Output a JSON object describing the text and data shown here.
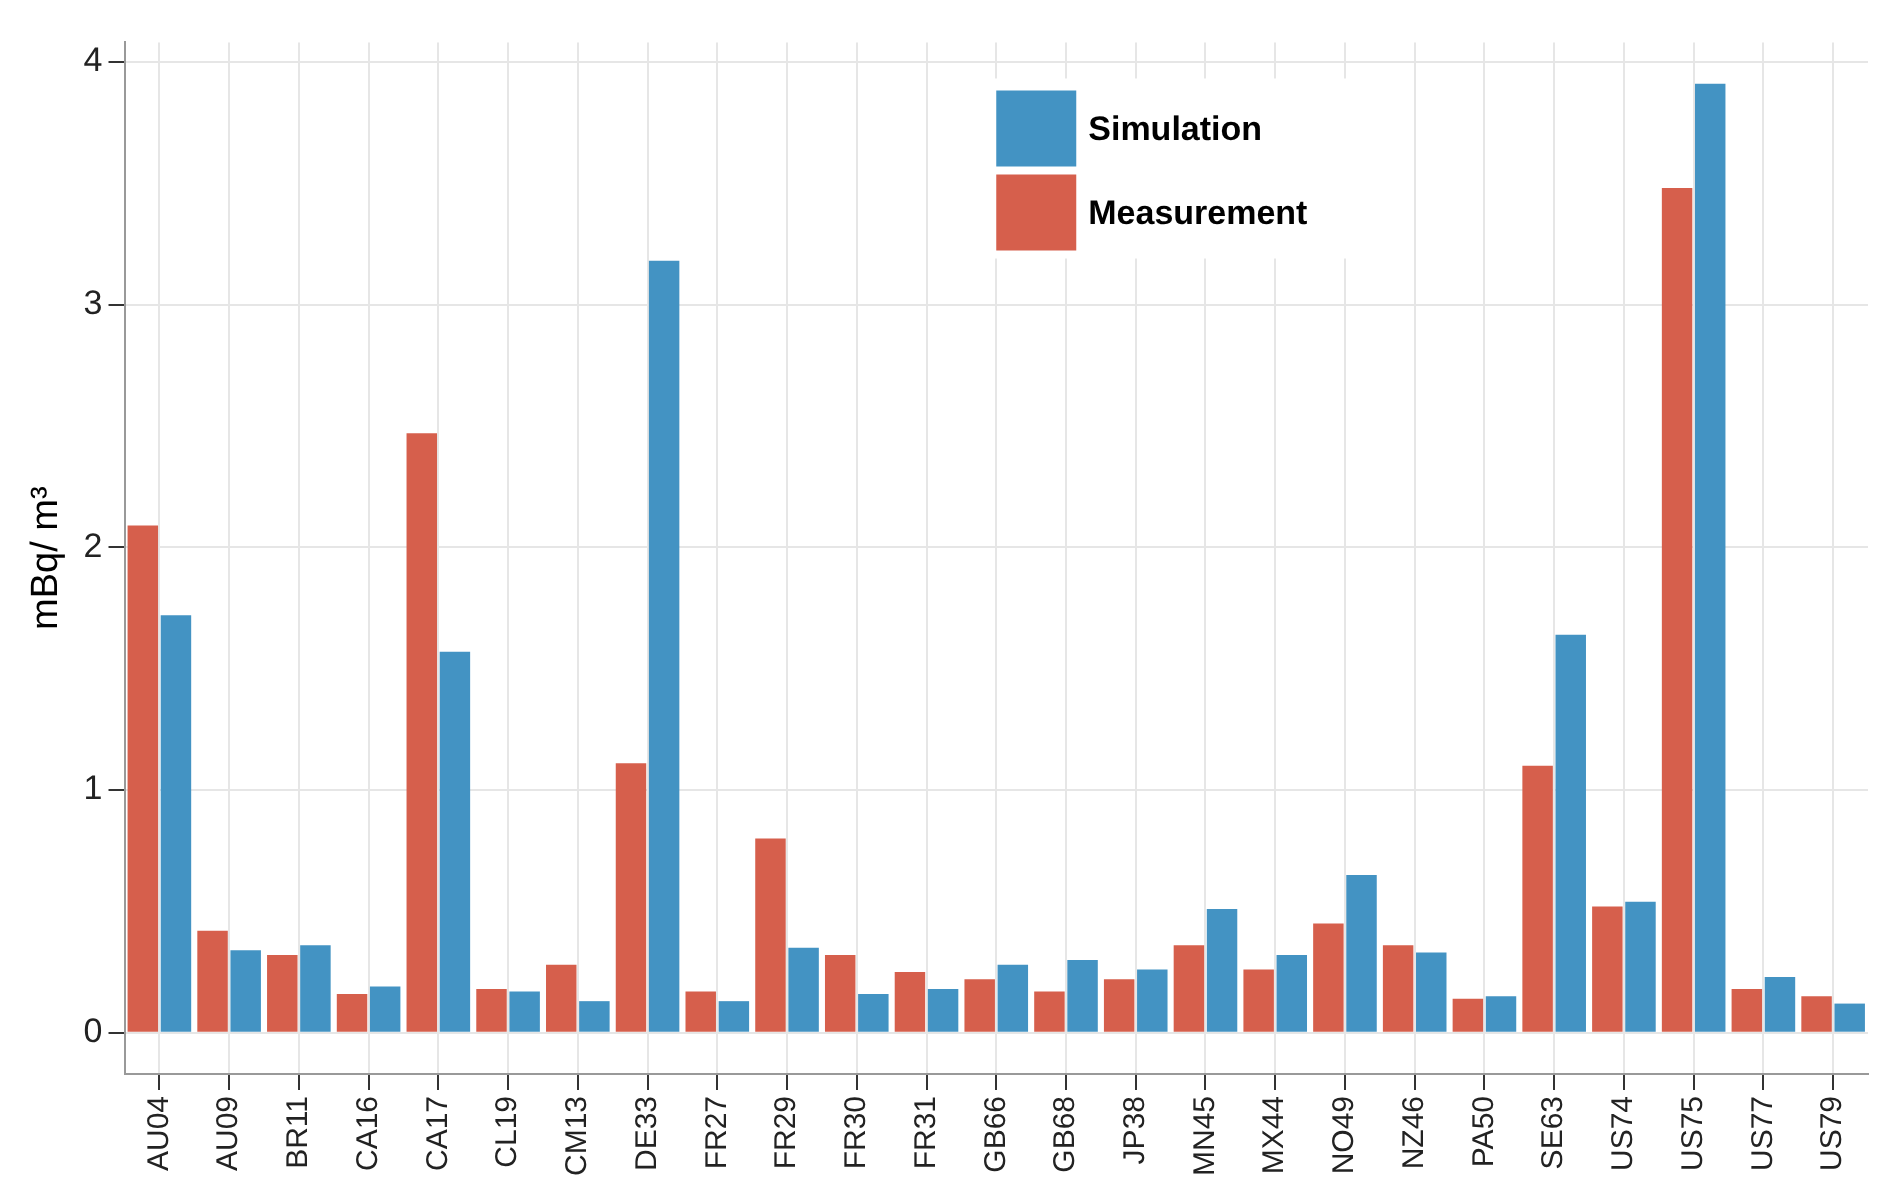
{
  "chart_data": {
    "type": "bar",
    "ylabel": "mBq/ m³",
    "categories": [
      "AU04",
      "AU09",
      "BR11",
      "CA16",
      "CA17",
      "CL19",
      "CM13",
      "DE33",
      "FR27",
      "FR29",
      "FR30",
      "FR31",
      "GB66",
      "GB68",
      "JP38",
      "MN45",
      "MX44",
      "NO49",
      "NZ46",
      "PA50",
      "SE63",
      "US74",
      "US75",
      "US77",
      "US79"
    ],
    "series": [
      {
        "name": "Measurement",
        "color": "#d65f4c",
        "values": [
          2.09,
          0.42,
          0.32,
          0.16,
          2.47,
          0.18,
          0.28,
          1.11,
          0.17,
          0.8,
          0.32,
          0.25,
          0.22,
          0.17,
          0.22,
          0.36,
          0.26,
          0.45,
          0.36,
          0.14,
          1.1,
          0.52,
          3.48,
          0.18,
          0.15
        ]
      },
      {
        "name": "Simulation",
        "color": "#4393c3",
        "values": [
          1.72,
          0.34,
          0.36,
          0.19,
          1.57,
          0.17,
          0.13,
          3.18,
          0.13,
          0.35,
          0.16,
          0.18,
          0.28,
          0.3,
          0.26,
          0.51,
          0.32,
          0.65,
          0.33,
          0.15,
          1.64,
          0.54,
          3.91,
          0.23,
          0.12
        ]
      }
    ],
    "ylim": [
      -0.17,
      4.08
    ],
    "yticks": [
      0,
      1,
      2,
      3,
      4
    ],
    "grid": true,
    "legend": "top"
  }
}
